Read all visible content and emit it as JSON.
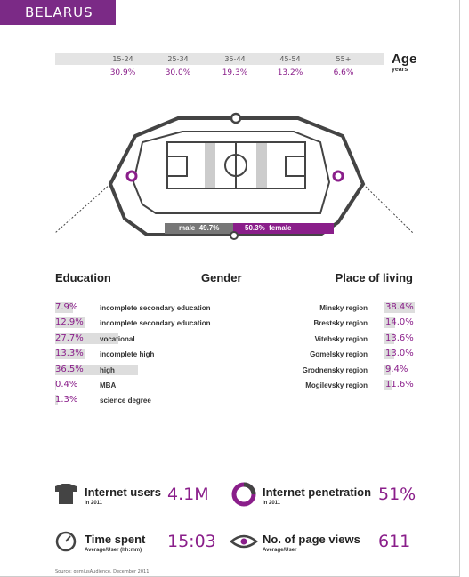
{
  "header": {
    "country": "BELARUS"
  },
  "age": {
    "title": "Age",
    "unit": "years",
    "groups": [
      {
        "range": "15-24",
        "share": "30.9%"
      },
      {
        "range": "25-34",
        "share": "30.0%"
      },
      {
        "range": "35-44",
        "share": "19.3%"
      },
      {
        "range": "45-54",
        "share": "13.2%"
      },
      {
        "range": "55+",
        "share": "6.6%"
      }
    ]
  },
  "gender": {
    "title": "Gender",
    "male": {
      "label": "male",
      "share": "49.7%"
    },
    "female": {
      "label": "female",
      "share": "50.3%"
    }
  },
  "education": {
    "title": "Education",
    "rows": [
      {
        "share": "7.9%",
        "label": "incomplete secondary education"
      },
      {
        "share": "12.9%",
        "label": "incomplete secondary education"
      },
      {
        "share": "27.7%",
        "label": "vocational"
      },
      {
        "share": "13.3%",
        "label": "incomplete high"
      },
      {
        "share": "36.5%",
        "label": "high"
      },
      {
        "share": "0.4%",
        "label": "MBA"
      },
      {
        "share": "1.3%",
        "label": "science degree"
      }
    ]
  },
  "place": {
    "title": "Place of living",
    "rows": [
      {
        "label": "Minsky region",
        "share": "38.4%"
      },
      {
        "label": "Brestsky region",
        "share": "14.0%"
      },
      {
        "label": "Vitebsky region",
        "share": "13.6%"
      },
      {
        "label": "Gomelsky region",
        "share": "13.0%"
      },
      {
        "label": "Grodnensky region",
        "share": "9.4%"
      },
      {
        "label": "Mogilevsky region",
        "share": "11.6%"
      }
    ]
  },
  "stats": [
    {
      "title": "Internet users",
      "note": "in 2011",
      "value": "4.1M"
    },
    {
      "title": "Internet penetration",
      "note": "in 2011",
      "value": "51%"
    },
    {
      "title": "Time spent",
      "note": "Average/User (hh:mm)",
      "value": "15:03"
    },
    {
      "title": "No. of page views",
      "note": "Average/User",
      "value": "611"
    }
  ],
  "source": "Source: gemiusAudience, December 2011"
}
